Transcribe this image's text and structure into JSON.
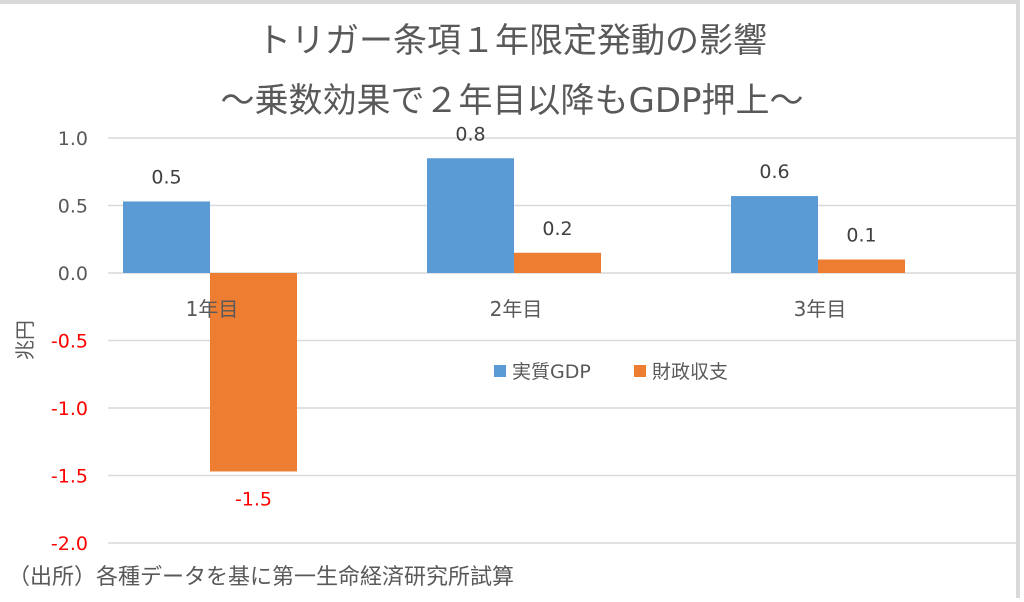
{
  "chart_data": {
    "type": "bar",
    "title": "トリガー条項１年限定発動の影響",
    "subtitle": "～乗数効果で２年目以降もGDP押上～",
    "ylabel": "兆円",
    "xlabel": "",
    "ylim": [
      -2.0,
      1.0
    ],
    "yticks": [
      1.0,
      0.5,
      0.0,
      -0.5,
      -1.0,
      -1.5,
      -2.0
    ],
    "ytick_labels": [
      "1.0",
      "0.5",
      "0.0",
      "-0.5",
      "-1.0",
      "-1.5",
      "-2.0"
    ],
    "grid": true,
    "legend_position": "center",
    "categories": [
      "1年目",
      "2年目",
      "3年目"
    ],
    "series": [
      {
        "name": "実質GDP",
        "color": "#5b9bd5",
        "values": [
          0.53,
          0.85,
          0.57
        ],
        "labels": [
          "0.5",
          "0.8",
          "0.6"
        ]
      },
      {
        "name": "財政収支",
        "color": "#ed7d31",
        "values": [
          -1.47,
          0.15,
          0.1
        ],
        "labels": [
          "-1.5",
          "0.2",
          "0.1"
        ]
      }
    ],
    "negative_color": "#ff0000",
    "source_note": "（出所）各種データを基に第一生命経済研究所試算"
  }
}
